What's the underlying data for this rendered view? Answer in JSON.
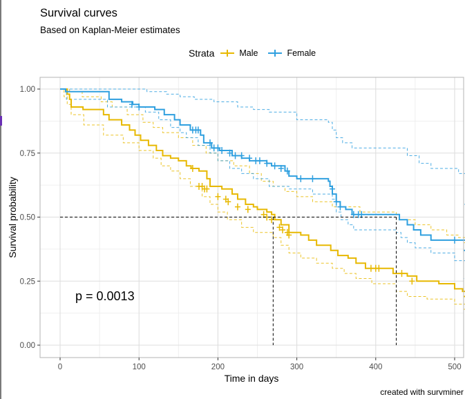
{
  "chart_data": {
    "type": "line",
    "title": "Survival curves",
    "subtitle": "Based on Kaplan-Meier estimates",
    "xlabel": "Time in days",
    "ylabel": "Survival probability",
    "xlim": [
      -25,
      525
    ],
    "ylim": [
      -0.03,
      1.03
    ],
    "xticks": [
      0,
      100,
      200,
      300,
      400,
      500
    ],
    "xtick_labels": [
      "0",
      "100",
      "200",
      "300",
      "400",
      "500"
    ],
    "yticks": [
      0,
      0.25,
      0.5,
      0.75,
      1.0
    ],
    "ytick_labels": [
      "0.00",
      "0.25",
      "0.50",
      "0.75",
      "1.00"
    ],
    "grid": true,
    "legend": {
      "title": "Strata",
      "position": "top",
      "entries": [
        "Male",
        "Female"
      ]
    },
    "annotation": "p = 0.0013",
    "median_line": {
      "y": 0.5,
      "medians": [
        {
          "strata": "Male",
          "x": 270
        },
        {
          "strata": "Female",
          "x": 426
        }
      ]
    },
    "series": [
      {
        "name": "Male",
        "color": "#E7B800",
        "step": [
          [
            0,
            1.0
          ],
          [
            9,
            0.98
          ],
          [
            12,
            0.96
          ],
          [
            14,
            0.93
          ],
          [
            29,
            0.92
          ],
          [
            55,
            0.9
          ],
          [
            62,
            0.88
          ],
          [
            78,
            0.86
          ],
          [
            88,
            0.84
          ],
          [
            95,
            0.82
          ],
          [
            102,
            0.8
          ],
          [
            112,
            0.78
          ],
          [
            122,
            0.76
          ],
          [
            130,
            0.74
          ],
          [
            140,
            0.73
          ],
          [
            150,
            0.72
          ],
          [
            160,
            0.7
          ],
          [
            166,
            0.69
          ],
          [
            176,
            0.68
          ],
          [
            186,
            0.65
          ],
          [
            190,
            0.62
          ],
          [
            205,
            0.61
          ],
          [
            218,
            0.59
          ],
          [
            225,
            0.57
          ],
          [
            235,
            0.55
          ],
          [
            245,
            0.54
          ],
          [
            250,
            0.53
          ],
          [
            262,
            0.52
          ],
          [
            268,
            0.51
          ],
          [
            272,
            0.49
          ],
          [
            280,
            0.47
          ],
          [
            290,
            0.44
          ],
          [
            305,
            0.43
          ],
          [
            315,
            0.41
          ],
          [
            325,
            0.39
          ],
          [
            343,
            0.37
          ],
          [
            352,
            0.35
          ],
          [
            365,
            0.34
          ],
          [
            375,
            0.32
          ],
          [
            387,
            0.3
          ],
          [
            415,
            0.3
          ],
          [
            422,
            0.28
          ],
          [
            440,
            0.27
          ],
          [
            452,
            0.25
          ],
          [
            480,
            0.24
          ],
          [
            500,
            0.22
          ],
          [
            510,
            0.21
          ],
          [
            525,
            0.19
          ]
        ],
        "lower": [
          [
            0,
            1.0
          ],
          [
            5,
            0.97
          ],
          [
            9,
            0.94
          ],
          [
            14,
            0.9
          ],
          [
            30,
            0.86
          ],
          [
            55,
            0.82
          ],
          [
            80,
            0.79
          ],
          [
            100,
            0.76
          ],
          [
            118,
            0.73
          ],
          [
            128,
            0.7
          ],
          [
            140,
            0.68
          ],
          [
            152,
            0.65
          ],
          [
            165,
            0.62
          ],
          [
            180,
            0.58
          ],
          [
            190,
            0.55
          ],
          [
            200,
            0.52
          ],
          [
            212,
            0.49
          ],
          [
            230,
            0.46
          ],
          [
            245,
            0.44
          ],
          [
            270,
            0.42
          ],
          [
            280,
            0.39
          ],
          [
            290,
            0.36
          ],
          [
            305,
            0.34
          ],
          [
            325,
            0.32
          ],
          [
            345,
            0.3
          ],
          [
            360,
            0.28
          ],
          [
            375,
            0.26
          ],
          [
            395,
            0.24
          ],
          [
            426,
            0.21
          ],
          [
            440,
            0.19
          ],
          [
            465,
            0.18
          ],
          [
            500,
            0.16
          ],
          [
            525,
            0.14
          ]
        ],
        "upper": [
          [
            0,
            1.0
          ],
          [
            12,
            0.99
          ],
          [
            28,
            0.97
          ],
          [
            52,
            0.95
          ],
          [
            66,
            0.93
          ],
          [
            85,
            0.9
          ],
          [
            105,
            0.87
          ],
          [
            118,
            0.85
          ],
          [
            130,
            0.83
          ],
          [
            150,
            0.81
          ],
          [
            168,
            0.78
          ],
          [
            185,
            0.75
          ],
          [
            200,
            0.72
          ],
          [
            220,
            0.7
          ],
          [
            240,
            0.67
          ],
          [
            255,
            0.64
          ],
          [
            270,
            0.62
          ],
          [
            285,
            0.6
          ],
          [
            300,
            0.58
          ],
          [
            320,
            0.56
          ],
          [
            345,
            0.54
          ],
          [
            380,
            0.52
          ],
          [
            426,
            0.49
          ],
          [
            450,
            0.47
          ],
          [
            470,
            0.45
          ],
          [
            490,
            0.43
          ],
          [
            505,
            0.42
          ],
          [
            525,
            0.4
          ]
        ],
        "censored": [
          [
            168,
            0.69
          ],
          [
            176,
            0.62
          ],
          [
            180,
            0.62
          ],
          [
            183,
            0.61
          ],
          [
            186,
            0.61
          ],
          [
            200,
            0.58
          ],
          [
            210,
            0.57
          ],
          [
            213,
            0.56
          ],
          [
            225,
            0.54
          ],
          [
            238,
            0.53
          ],
          [
            258,
            0.51
          ],
          [
            262,
            0.5
          ],
          [
            268,
            0.49
          ],
          [
            278,
            0.46
          ],
          [
            282,
            0.45
          ],
          [
            288,
            0.44
          ],
          [
            290,
            0.43
          ],
          [
            394,
            0.3
          ],
          [
            400,
            0.3
          ],
          [
            404,
            0.3
          ],
          [
            433,
            0.28
          ],
          [
            446,
            0.25
          ]
        ]
      },
      {
        "name": "Female",
        "color": "#2E9FDF",
        "step": [
          [
            0,
            1.0
          ],
          [
            7,
            0.99
          ],
          [
            60,
            0.99
          ],
          [
            62,
            0.96
          ],
          [
            78,
            0.95
          ],
          [
            92,
            0.94
          ],
          [
            100,
            0.93
          ],
          [
            120,
            0.92
          ],
          [
            132,
            0.9
          ],
          [
            145,
            0.88
          ],
          [
            152,
            0.86
          ],
          [
            165,
            0.84
          ],
          [
            178,
            0.82
          ],
          [
            182,
            0.79
          ],
          [
            192,
            0.77
          ],
          [
            202,
            0.76
          ],
          [
            218,
            0.74
          ],
          [
            230,
            0.73
          ],
          [
            240,
            0.72
          ],
          [
            262,
            0.71
          ],
          [
            268,
            0.7
          ],
          [
            285,
            0.68
          ],
          [
            290,
            0.66
          ],
          [
            300,
            0.65
          ],
          [
            340,
            0.64
          ],
          [
            342,
            0.62
          ],
          [
            345,
            0.59
          ],
          [
            350,
            0.56
          ],
          [
            355,
            0.54
          ],
          [
            362,
            0.53
          ],
          [
            370,
            0.51
          ],
          [
            426,
            0.51
          ],
          [
            430,
            0.49
          ],
          [
            440,
            0.47
          ],
          [
            448,
            0.45
          ],
          [
            457,
            0.43
          ],
          [
            470,
            0.41
          ],
          [
            515,
            0.41
          ],
          [
            518,
            0.39
          ],
          [
            522,
            0.37
          ]
        ],
        "lower": [
          [
            0,
            1.0
          ],
          [
            8,
            0.96
          ],
          [
            55,
            0.96
          ],
          [
            60,
            0.93
          ],
          [
            108,
            0.91
          ],
          [
            125,
            0.88
          ],
          [
            140,
            0.85
          ],
          [
            152,
            0.83
          ],
          [
            160,
            0.81
          ],
          [
            175,
            0.78
          ],
          [
            190,
            0.75
          ],
          [
            200,
            0.72
          ],
          [
            215,
            0.69
          ],
          [
            230,
            0.67
          ],
          [
            245,
            0.65
          ],
          [
            265,
            0.62
          ],
          [
            290,
            0.61
          ],
          [
            320,
            0.59
          ],
          [
            345,
            0.57
          ],
          [
            350,
            0.52
          ],
          [
            356,
            0.49
          ],
          [
            365,
            0.47
          ],
          [
            372,
            0.45
          ],
          [
            426,
            0.44
          ],
          [
            432,
            0.42
          ],
          [
            440,
            0.4
          ],
          [
            450,
            0.38
          ],
          [
            470,
            0.36
          ],
          [
            500,
            0.33
          ],
          [
            518,
            0.3
          ],
          [
            522,
            0.26
          ]
        ],
        "upper": [
          [
            0,
            1.0
          ],
          [
            60,
            1.0
          ],
          [
            110,
            0.99
          ],
          [
            135,
            0.98
          ],
          [
            152,
            0.97
          ],
          [
            170,
            0.96
          ],
          [
            195,
            0.95
          ],
          [
            225,
            0.93
          ],
          [
            245,
            0.92
          ],
          [
            265,
            0.91
          ],
          [
            300,
            0.88
          ],
          [
            340,
            0.87
          ],
          [
            345,
            0.84
          ],
          [
            350,
            0.81
          ],
          [
            358,
            0.79
          ],
          [
            370,
            0.77
          ],
          [
            428,
            0.77
          ],
          [
            440,
            0.74
          ],
          [
            455,
            0.71
          ],
          [
            470,
            0.69
          ],
          [
            505,
            0.67
          ],
          [
            522,
            0.61
          ],
          [
            525,
            0.55
          ]
        ],
        "censored": [
          [
            91,
            0.94
          ],
          [
            100,
            0.93
          ],
          [
            168,
            0.84
          ],
          [
            172,
            0.84
          ],
          [
            175,
            0.84
          ],
          [
            190,
            0.79
          ],
          [
            195,
            0.77
          ],
          [
            200,
            0.77
          ],
          [
            205,
            0.76
          ],
          [
            215,
            0.75
          ],
          [
            222,
            0.74
          ],
          [
            230,
            0.74
          ],
          [
            240,
            0.73
          ],
          [
            248,
            0.72
          ],
          [
            253,
            0.72
          ],
          [
            262,
            0.71
          ],
          [
            272,
            0.7
          ],
          [
            280,
            0.69
          ],
          [
            288,
            0.68
          ],
          [
            305,
            0.65
          ],
          [
            320,
            0.65
          ],
          [
            345,
            0.61
          ],
          [
            350,
            0.56
          ],
          [
            355,
            0.54
          ],
          [
            372,
            0.51
          ],
          [
            378,
            0.51
          ],
          [
            382,
            0.51
          ],
          [
            500,
            0.41
          ]
        ]
      }
    ]
  },
  "caption": "created with survminer"
}
